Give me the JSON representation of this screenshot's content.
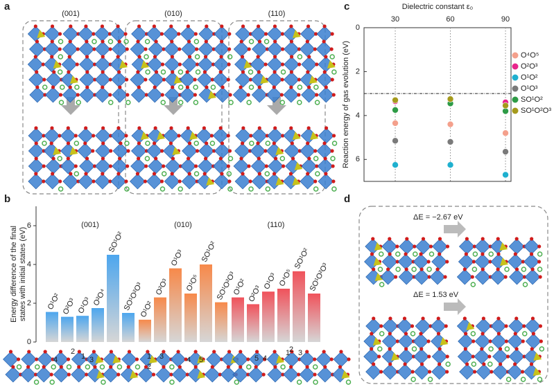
{
  "panel_labels": [
    "a",
    "b",
    "c",
    "d"
  ],
  "panel_a": {
    "facets": [
      "(001)",
      "(010)",
      "(110)"
    ]
  },
  "panel_b_sites": [
    [
      "4",
      "2",
      "1",
      "3"
    ],
    [
      "1",
      "2",
      "3",
      "4",
      "5"
    ],
    [
      "5",
      "4",
      "1",
      "2",
      "3"
    ]
  ],
  "panel_d": {
    "energies": [
      "ΔE = −2.67 eV",
      "ΔE = 1.53 eV"
    ]
  },
  "chart_data": [
    {
      "type": "bar",
      "ylabel": [
        "Energy difference of the final",
        "states with initial states (eV)"
      ],
      "ylim": [
        0,
        7
      ],
      "yticks": [
        0,
        2,
        4,
        6
      ],
      "groups": [
        {
          "name": "(001)",
          "color": "#4da6ee",
          "categories": [
            "O¹O²",
            "O²O³",
            "O¹O³",
            "O²O⁴",
            "SO¹O²",
            "SO¹O²O³"
          ],
          "values": [
            1.55,
            1.3,
            1.35,
            1.75,
            4.5,
            1.5
          ]
        },
        {
          "name": "(010)",
          "color": "#f7894a",
          "categories": [
            "O¹O²",
            "O²O³",
            "O¹O³",
            "O¹O⁵",
            "SO¹O²",
            "SO¹O²O³"
          ],
          "values": [
            1.15,
            2.3,
            3.8,
            2.5,
            4.0,
            2.05
          ]
        },
        {
          "name": "(110)",
          "color": "#f0525b",
          "categories": [
            "O¹O²",
            "O²O³",
            "O¹O³",
            "O⁴O⁵",
            "SO¹O²",
            "SO¹O²O³"
          ],
          "values": [
            2.3,
            1.95,
            2.6,
            2.75,
            3.65,
            2.5
          ]
        }
      ]
    },
    {
      "type": "scatter",
      "xlabel": "Dielectric constant ε₀",
      "ylabel": "Reaction energy of gas evolution (eV)",
      "x": [
        30,
        60,
        90
      ],
      "xlim": [
        13,
        93
      ],
      "xticks": [
        30,
        60,
        90
      ],
      "ylim": [
        0,
        7
      ],
      "yticks": [
        0,
        2,
        4,
        6
      ],
      "reference_line": 3,
      "series": [
        {
          "name": "O⁴O⁵",
          "color": "#f4a08c",
          "values": [
            4.35,
            4.4,
            4.8
          ]
        },
        {
          "name": "O²O³",
          "color": "#e8258c",
          "values": [
            3.35,
            3.3,
            3.4
          ]
        },
        {
          "name": "O¹O²",
          "color": "#1fb0cf",
          "values": [
            6.25,
            6.25,
            6.7
          ]
        },
        {
          "name": "O¹O³",
          "color": "#7a7a7a",
          "values": [
            5.15,
            5.2,
            5.65
          ]
        },
        {
          "name": "SO¹O²",
          "color": "#2e9b46",
          "values": [
            3.75,
            3.45,
            3.8
          ]
        },
        {
          "name": "SO¹O²O³",
          "color": "#a59a1c",
          "values": [
            3.3,
            3.25,
            3.55
          ]
        }
      ]
    }
  ]
}
